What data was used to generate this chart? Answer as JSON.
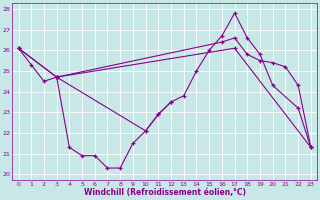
{
  "xlabel": "Windchill (Refroidissement éolien,°C)",
  "bg_color": "#c8e8e8",
  "grid_color": "#ffffff",
  "line_color": "#8B008B",
  "ylim": [
    20,
    28
  ],
  "xlim": [
    0,
    23
  ],
  "yticks": [
    20,
    21,
    22,
    23,
    24,
    25,
    26,
    27,
    28
  ],
  "xticks": [
    0,
    1,
    2,
    3,
    4,
    5,
    6,
    7,
    8,
    9,
    10,
    11,
    12,
    13,
    14,
    15,
    16,
    17,
    18,
    19,
    20,
    21,
    22,
    23
  ],
  "line1_x": [
    0,
    1,
    2,
    3
  ],
  "line1_y": [
    26.1,
    25.3,
    24.5,
    24.7
  ],
  "line2_x": [
    3,
    4,
    5,
    6,
    7,
    8,
    9,
    10,
    11,
    12
  ],
  "line2_y": [
    24.7,
    21.3,
    20.9,
    20.9,
    20.3,
    20.3,
    21.5,
    22.1,
    22.9,
    23.5
  ],
  "line3_x": [
    3,
    10,
    11,
    12,
    13,
    14,
    15,
    16,
    17,
    18,
    19,
    20,
    22,
    23
  ],
  "line3_y": [
    24.7,
    22.1,
    22.9,
    23.5,
    23.8,
    25.0,
    26.0,
    26.7,
    27.8,
    26.6,
    25.8,
    24.3,
    23.2,
    21.3
  ],
  "line4_x": [
    0,
    3,
    16,
    17,
    18,
    19,
    20,
    21,
    22,
    23
  ],
  "line4_y": [
    26.1,
    24.7,
    26.4,
    26.6,
    25.8,
    25.5,
    25.4,
    25.2,
    24.3,
    21.3
  ],
  "line5_x": [
    0,
    3,
    17,
    23
  ],
  "line5_y": [
    26.1,
    24.7,
    26.1,
    21.3
  ]
}
